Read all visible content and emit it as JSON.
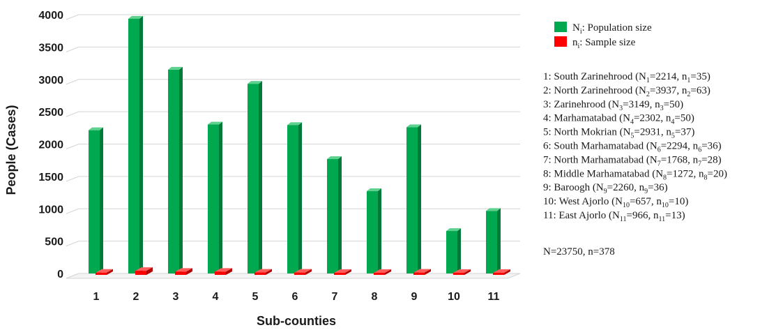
{
  "chart_data": {
    "type": "bar",
    "categories": [
      "1",
      "2",
      "3",
      "4",
      "5",
      "6",
      "7",
      "8",
      "9",
      "10",
      "11"
    ],
    "series": [
      {
        "name": "N_i: Population size",
        "values": [
          2214,
          3937,
          3149,
          2302,
          2931,
          2294,
          1768,
          1272,
          2260,
          657,
          966
        ],
        "color": "#00A94F"
      },
      {
        "name": "n_i: Sample size",
        "values": [
          35,
          63,
          50,
          50,
          37,
          36,
          28,
          20,
          36,
          10,
          13
        ],
        "color": "#FF0000"
      }
    ],
    "title": "",
    "xlabel": "Sub-counties",
    "ylabel": "People (Cases)",
    "ylim": [
      0,
      4000
    ],
    "yticks": [
      0,
      500,
      1000,
      1500,
      2000,
      2500,
      3000,
      3500,
      4000
    ],
    "grid": true,
    "legend_position": "right",
    "legend_entries": [
      {
        "symbol": "N",
        "sub": "i",
        "rest": ": Population size",
        "color": "#00A94F"
      },
      {
        "symbol": "n",
        "sub": "i",
        "rest": ": Sample size",
        "color": "#FF0000"
      }
    ],
    "annotations": [
      {
        "pre": "1: South Zarinehrood (",
        "N": "1",
        "Nval": "2214",
        "n": "1",
        "nval": "35"
      },
      {
        "pre": "2: North Zarinehrood (",
        "N": "2",
        "Nval": "3937",
        "n": "2",
        "nval": "63"
      },
      {
        "pre": "3: Zarinehrood (",
        "N": "3",
        "Nval": "3149",
        "n": "3",
        "nval": "50"
      },
      {
        "pre": "4: Marhamatabad (",
        "N": "4",
        "Nval": "2302",
        "n": "4",
        "nval": "50"
      },
      {
        "pre": "5: North Mokrian (",
        "N": "5",
        "Nval": "2931",
        "n": "5",
        "nval": "37"
      },
      {
        "pre": "6: South Marhamatabad (",
        "N": "6",
        "Nval": "2294",
        "n": "6",
        "nval": "36"
      },
      {
        "pre": "7: North Marhamatabad (",
        "N": "7",
        "Nval": "1768",
        "n": "7",
        "nval": "28"
      },
      {
        "pre": "8: Middle Marhamatabad (",
        "N": "8",
        "Nval": "1272",
        "n": "8",
        "nval": "20"
      },
      {
        "pre": "9: Baroogh (",
        "N": "9",
        "Nval": "2260",
        "n": "9",
        "nval": "36"
      },
      {
        "pre": "10: West Ajorlo (",
        "N": "10",
        "Nval": "657",
        "n": "10",
        "nval": "10"
      },
      {
        "pre": "11: East Ajorlo (",
        "N": "11",
        "Nval": "966",
        "n": "11",
        "nval": "13"
      }
    ],
    "total_note": "N=23750, n=378"
  }
}
